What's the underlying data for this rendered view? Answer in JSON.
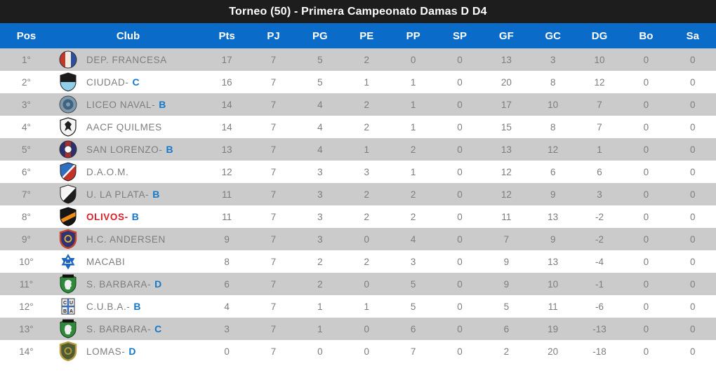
{
  "title": "Torneo (50) - Primera Campeonato Damas D D4",
  "colors": {
    "header_blue": "#0a6cc8",
    "stripe_gray": "#cbcbcb",
    "cell_text_gray": "#7d7d7d",
    "titlebar_black": "#1d1d1d",
    "team_letter_blue": "#1778c8",
    "highlight_red": "#d9232a"
  },
  "table": {
    "columns": [
      "Pos",
      "Club",
      "Pts",
      "PJ",
      "PG",
      "PE",
      "PP",
      "SP",
      "GF",
      "GC",
      "DG",
      "Bo",
      "Sa"
    ],
    "rows": [
      {
        "pos": "1°",
        "club": "DEP. FRANCESA",
        "suffix": "",
        "highlight": false,
        "logo": {
          "icon": "dep-francesa-crest-icon",
          "type": "circle3",
          "colors": [
            "#c0392b",
            "#f2ece0",
            "#2d4f9e"
          ]
        },
        "stats": [
          17,
          7,
          5,
          2,
          0,
          0,
          13,
          3,
          10,
          0,
          0
        ]
      },
      {
        "pos": "2°",
        "club": "CIUDAD",
        "suffix": "C",
        "highlight": false,
        "logo": {
          "icon": "ciudad-crest-icon",
          "type": "shield2",
          "colors": [
            "#1b1b1b",
            "#8fd0e8"
          ]
        },
        "stats": [
          16,
          7,
          5,
          1,
          1,
          0,
          20,
          8,
          12,
          0,
          0
        ]
      },
      {
        "pos": "3°",
        "club": "LICEO NAVAL",
        "suffix": "B",
        "highlight": false,
        "logo": {
          "icon": "liceo-naval-crest-icon",
          "type": "badge",
          "colors": [
            "#7f99ad",
            "#3f6281"
          ]
        },
        "stats": [
          14,
          7,
          4,
          2,
          1,
          0,
          17,
          10,
          7,
          0,
          0
        ]
      },
      {
        "pos": "4°",
        "club": "AACF QUILMES",
        "suffix": "",
        "highlight": false,
        "logo": {
          "icon": "aacf-quilmes-crest-icon",
          "type": "shieldfig",
          "colors": [
            "#f5f5f5",
            "#1e1e1e"
          ]
        },
        "stats": [
          14,
          7,
          4,
          2,
          1,
          0,
          15,
          8,
          7,
          0,
          0
        ]
      },
      {
        "pos": "5°",
        "club": "SAN LORENZO",
        "suffix": "B",
        "highlight": false,
        "logo": {
          "icon": "san-lorenzo-crest-icon",
          "type": "circle3",
          "colors": [
            "#2e2f6e",
            "#a92f2b",
            "#2e2f6e",
            "#ffffff"
          ]
        },
        "stats": [
          13,
          7,
          4,
          1,
          2,
          0,
          13,
          12,
          1,
          0,
          0
        ]
      },
      {
        "pos": "6°",
        "club": "D.A.O.M.",
        "suffix": "",
        "highlight": false,
        "logo": {
          "icon": "daom-crest-icon",
          "type": "shielddiag",
          "colors": [
            "#2f6fc0",
            "#c33127"
          ]
        },
        "stats": [
          12,
          7,
          3,
          3,
          1,
          0,
          12,
          6,
          6,
          0,
          0
        ]
      },
      {
        "pos": "7°",
        "club": "U. LA PLATA",
        "suffix": "B",
        "highlight": false,
        "logo": {
          "icon": "u-la-plata-crest-icon",
          "type": "shielddiag",
          "colors": [
            "#f5f5f5",
            "#1d1d1d"
          ]
        },
        "stats": [
          11,
          7,
          3,
          2,
          2,
          0,
          12,
          9,
          3,
          0,
          0
        ]
      },
      {
        "pos": "8°",
        "club": "OLIVOS",
        "suffix": "B",
        "highlight": true,
        "logo": {
          "icon": "olivos-crest-icon",
          "type": "shieldband",
          "colors": [
            "#161616",
            "#ef8d1f"
          ]
        },
        "stats": [
          11,
          7,
          3,
          2,
          2,
          0,
          11,
          13,
          -2,
          0,
          0
        ]
      },
      {
        "pos": "9°",
        "club": "H.C. ANDERSEN",
        "suffix": "",
        "highlight": false,
        "logo": {
          "icon": "hc-andersen-crest-icon",
          "type": "shieldborder",
          "colors": [
            "#2e3372",
            "#c2452e",
            "#e0b23a"
          ]
        },
        "stats": [
          9,
          7,
          3,
          0,
          4,
          0,
          7,
          9,
          -2,
          0,
          0
        ]
      },
      {
        "pos": "10°",
        "club": "MACABI",
        "suffix": "",
        "highlight": false,
        "logo": {
          "icon": "macabi-crest-icon",
          "type": "star",
          "colors": [
            "#1e66bd"
          ]
        },
        "stats": [
          8,
          7,
          2,
          2,
          3,
          0,
          9,
          13,
          -4,
          0,
          0
        ]
      },
      {
        "pos": "11°",
        "club": "S. BARBARA",
        "suffix": "D",
        "highlight": false,
        "logo": {
          "icon": "s-barbara-crest-icon",
          "type": "lionshield",
          "colors": [
            "#2e8a3a",
            "#f0f0f0",
            "#111111"
          ]
        },
        "stats": [
          6,
          7,
          2,
          0,
          5,
          0,
          9,
          10,
          -1,
          0,
          0
        ]
      },
      {
        "pos": "12°",
        "club": "C.U.B.A.",
        "suffix": "B",
        "highlight": false,
        "logo": {
          "icon": "cuba-crest-icon",
          "type": "quarters",
          "colors": [
            "#1d1d1d",
            "#3e6cb2",
            "#f0f0f0"
          ]
        },
        "stats": [
          4,
          7,
          1,
          1,
          5,
          0,
          5,
          11,
          -6,
          0,
          0
        ]
      },
      {
        "pos": "13°",
        "club": "S. BARBARA",
        "suffix": "C",
        "highlight": false,
        "logo": {
          "icon": "s-barbara-crest-icon",
          "type": "lionshield",
          "colors": [
            "#2e8a3a",
            "#f0f0f0",
            "#111111"
          ]
        },
        "stats": [
          3,
          7,
          1,
          0,
          6,
          0,
          6,
          19,
          -13,
          0,
          0
        ]
      },
      {
        "pos": "14°",
        "club": "LOMAS",
        "suffix": "D",
        "highlight": false,
        "logo": {
          "icon": "lomas-crest-icon",
          "type": "shieldborder",
          "colors": [
            "#4d5c33",
            "#b89a3c",
            "#b89a3c"
          ]
        },
        "stats": [
          0,
          7,
          0,
          0,
          7,
          0,
          2,
          20,
          -18,
          0,
          0
        ]
      }
    ]
  }
}
